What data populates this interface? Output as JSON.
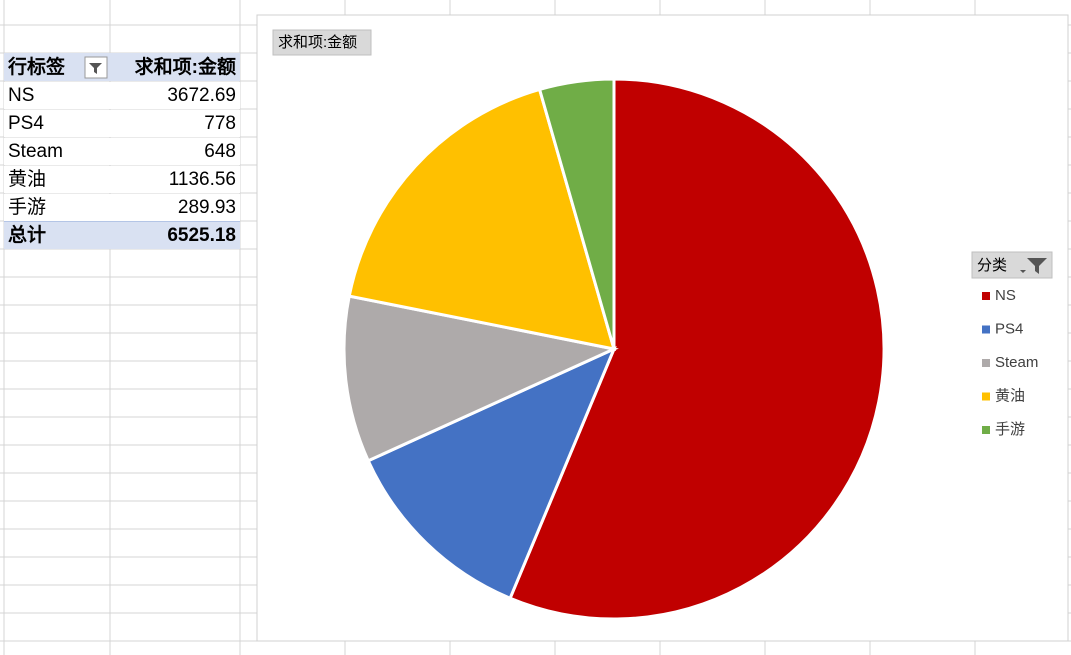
{
  "table": {
    "header": [
      "行标签",
      "求和项:金额"
    ],
    "total_label": "总计",
    "total": 6525.18
  },
  "chart_data": {
    "type": "pie",
    "title": "求和项:金额",
    "legend_title": "分类",
    "categories": [
      "NS",
      "PS4",
      "Steam",
      "黄油",
      "手游"
    ],
    "values": [
      3672.69,
      778,
      648,
      1136.56,
      289.93
    ],
    "colors": [
      "#c00000",
      "#4472c4",
      "#aeaaaa",
      "#ffc000",
      "#70ad47"
    ]
  }
}
